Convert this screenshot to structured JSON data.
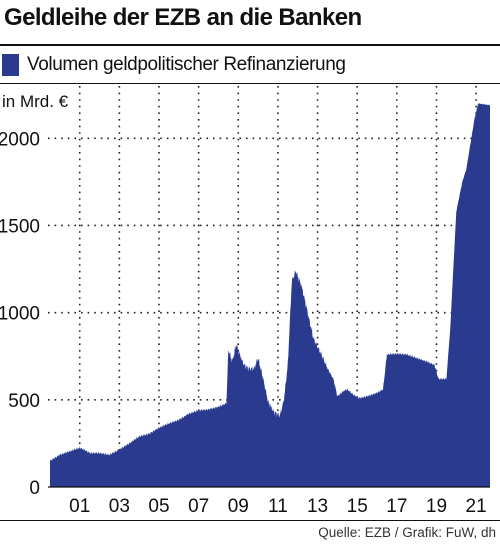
{
  "title": "Geldleihe der EZB an die Banken",
  "source": "Quelle: EZB / Grafik: FuW, dh",
  "colors": {
    "area": "#2a3b8f",
    "grid": "#222222"
  },
  "chart_data": {
    "type": "area",
    "title": "Geldleihe der EZB an die Banken",
    "series": [
      {
        "name": "Volumen geldpolitischer Refinanzierung",
        "color": "#2a3b8f"
      }
    ],
    "ylabel": "in Mrd. €",
    "ylim": [
      0,
      2300
    ],
    "xlim": [
      1999.9,
      2022.2
    ],
    "grid": true,
    "legend": "top-left",
    "yticks": [
      0,
      500,
      1000,
      1500,
      2000
    ],
    "xticks": [
      {
        "x": 2001.5,
        "label": "01"
      },
      {
        "x": 2003.5,
        "label": "03"
      },
      {
        "x": 2005.5,
        "label": "05"
      },
      {
        "x": 2007.5,
        "label": "07"
      },
      {
        "x": 2009.5,
        "label": "09"
      },
      {
        "x": 2011.5,
        "label": "11"
      },
      {
        "x": 2013.5,
        "label": "13"
      },
      {
        "x": 2015.5,
        "label": "15"
      },
      {
        "x": 2017.5,
        "label": "17"
      },
      {
        "x": 2019.5,
        "label": "19"
      },
      {
        "x": 2021.5,
        "label": "21"
      }
    ],
    "points": [
      [
        2000.0,
        150
      ],
      [
        2000.5,
        185
      ],
      [
        2001.0,
        205
      ],
      [
        2001.5,
        225
      ],
      [
        2001.8,
        210
      ],
      [
        2002.0,
        195
      ],
      [
        2002.5,
        195
      ],
      [
        2003.0,
        185
      ],
      [
        2003.5,
        215
      ],
      [
        2004.0,
        250
      ],
      [
        2004.5,
        290
      ],
      [
        2005.0,
        305
      ],
      [
        2005.5,
        340
      ],
      [
        2006.0,
        365
      ],
      [
        2006.5,
        385
      ],
      [
        2007.0,
        420
      ],
      [
        2007.5,
        440
      ],
      [
        2008.0,
        445
      ],
      [
        2008.5,
        460
      ],
      [
        2008.9,
        480
      ],
      [
        2009.0,
        790
      ],
      [
        2009.2,
        720
      ],
      [
        2009.4,
        820
      ],
      [
        2009.6,
        750
      ],
      [
        2009.8,
        700
      ],
      [
        2010.0,
        680
      ],
      [
        2010.3,
        680
      ],
      [
        2010.5,
        740
      ],
      [
        2010.8,
        600
      ],
      [
        2011.0,
        490
      ],
      [
        2011.3,
        430
      ],
      [
        2011.6,
        410
      ],
      [
        2011.8,
        500
      ],
      [
        2012.0,
        700
      ],
      [
        2012.2,
        1180
      ],
      [
        2012.4,
        1240
      ],
      [
        2012.7,
        1150
      ],
      [
        2013.0,
        1000
      ],
      [
        2013.3,
        850
      ],
      [
        2013.7,
        760
      ],
      [
        2014.0,
        680
      ],
      [
        2014.3,
        620
      ],
      [
        2014.5,
        520
      ],
      [
        2014.8,
        550
      ],
      [
        2015.0,
        560
      ],
      [
        2015.3,
        530
      ],
      [
        2015.6,
        510
      ],
      [
        2016.0,
        520
      ],
      [
        2016.5,
        540
      ],
      [
        2016.8,
        560
      ],
      [
        2017.0,
        760
      ],
      [
        2017.5,
        765
      ],
      [
        2018.0,
        760
      ],
      [
        2018.5,
        740
      ],
      [
        2019.0,
        720
      ],
      [
        2019.4,
        700
      ],
      [
        2019.6,
        620
      ],
      [
        2020.0,
        620
      ],
      [
        2020.2,
        920
      ],
      [
        2020.5,
        1580
      ],
      [
        2020.8,
        1750
      ],
      [
        2021.0,
        1820
      ],
      [
        2021.4,
        2100
      ],
      [
        2021.6,
        2200
      ],
      [
        2022.2,
        2190
      ]
    ]
  }
}
